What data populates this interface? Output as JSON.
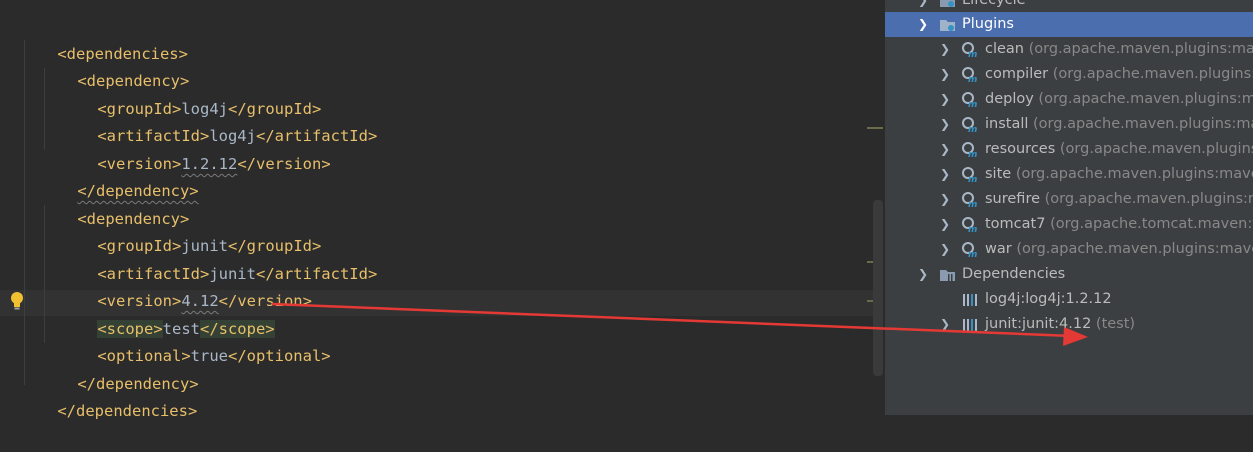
{
  "editor": {
    "lines": [
      {
        "indent": 0,
        "open": "<dependencies>"
      },
      {
        "indent": 1,
        "open": "<dependency>"
      },
      {
        "indent": 2,
        "open": "<groupId>",
        "value": "log4j",
        "close": "</groupId>"
      },
      {
        "indent": 2,
        "open": "<artifactId>",
        "value": "log4j",
        "close": "</artifactId>"
      },
      {
        "indent": 2,
        "open": "<version>",
        "value": "1.2.12",
        "close": "</version>"
      },
      {
        "indent": 1,
        "open": "</dependency>"
      },
      {
        "indent": 1,
        "open": "<dependency>"
      },
      {
        "indent": 2,
        "open": "<groupId>",
        "value": "junit",
        "close": "</groupId>"
      },
      {
        "indent": 2,
        "open": "<artifactId>",
        "value": "junit",
        "close": "</artifactId>"
      },
      {
        "indent": 2,
        "open": "<version>",
        "value": "4.12",
        "close": "</version>"
      },
      {
        "indent": 2,
        "open": "<scope>",
        "value": "test",
        "close": "</scope>"
      },
      {
        "indent": 2,
        "open": "<optional>",
        "value": "true",
        "close": "</optional>"
      },
      {
        "indent": 1,
        "open": "</dependency>"
      },
      {
        "indent": 0,
        "open": "</dependencies>"
      }
    ]
  },
  "maven": {
    "lifecycle": "Lifecycle",
    "plugins": "Plugins",
    "plugin_items": [
      {
        "name": "clean",
        "group": "(org.apache.maven.plugins:ma"
      },
      {
        "name": "compiler",
        "group": "(org.apache.maven.plugins:"
      },
      {
        "name": "deploy",
        "group": "(org.apache.maven.plugins:m"
      },
      {
        "name": "install",
        "group": "(org.apache.maven.plugins:ma"
      },
      {
        "name": "resources",
        "group": "(org.apache.maven.plugins"
      },
      {
        "name": "site",
        "group": "(org.apache.maven.plugins:mave"
      },
      {
        "name": "surefire",
        "group": "(org.apache.maven.plugins:m"
      },
      {
        "name": "tomcat7",
        "group": "(org.apache.tomcat.maven:t"
      },
      {
        "name": "war",
        "group": "(org.apache.maven.plugins:mave"
      }
    ],
    "dependencies": "Dependencies",
    "dep_items": [
      {
        "name": "log4j:log4j:1.2.12",
        "suffix": ""
      },
      {
        "name": "junit:junit:4.12",
        "suffix": "(test)"
      }
    ]
  },
  "colors": {
    "tag": "#e8bf6a",
    "text": "#a9b7c6",
    "selection": "#4b6eaf",
    "arrow": "#e53935"
  }
}
